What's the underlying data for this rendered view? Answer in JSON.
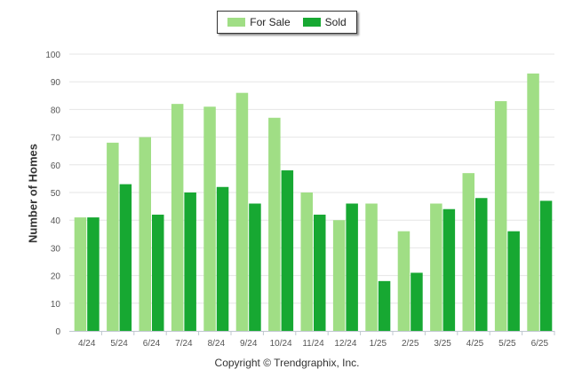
{
  "chart_data": {
    "type": "bar",
    "categories": [
      "4/24",
      "5/24",
      "6/24",
      "7/24",
      "8/24",
      "9/24",
      "10/24",
      "11/24",
      "12/24",
      "1/25",
      "2/25",
      "3/25",
      "4/25",
      "5/25",
      "6/25"
    ],
    "series": [
      {
        "name": "For Sale",
        "color": "#a0de85",
        "values": [
          41,
          68,
          70,
          82,
          81,
          86,
          77,
          50,
          40,
          46,
          36,
          46,
          57,
          83,
          93
        ]
      },
      {
        "name": "Sold",
        "color": "#17a832",
        "values": [
          41,
          53,
          42,
          50,
          52,
          46,
          58,
          42,
          46,
          18,
          21,
          44,
          48,
          36,
          47
        ]
      }
    ],
    "ylabel": "Number of Homes",
    "ylim": [
      0,
      100
    ],
    "yticks": [
      0,
      10,
      20,
      30,
      40,
      50,
      60,
      70,
      80,
      90,
      100
    ],
    "grid": true,
    "legend_position": "top-center"
  },
  "footer": "Copyright © Trendgraphix, Inc."
}
